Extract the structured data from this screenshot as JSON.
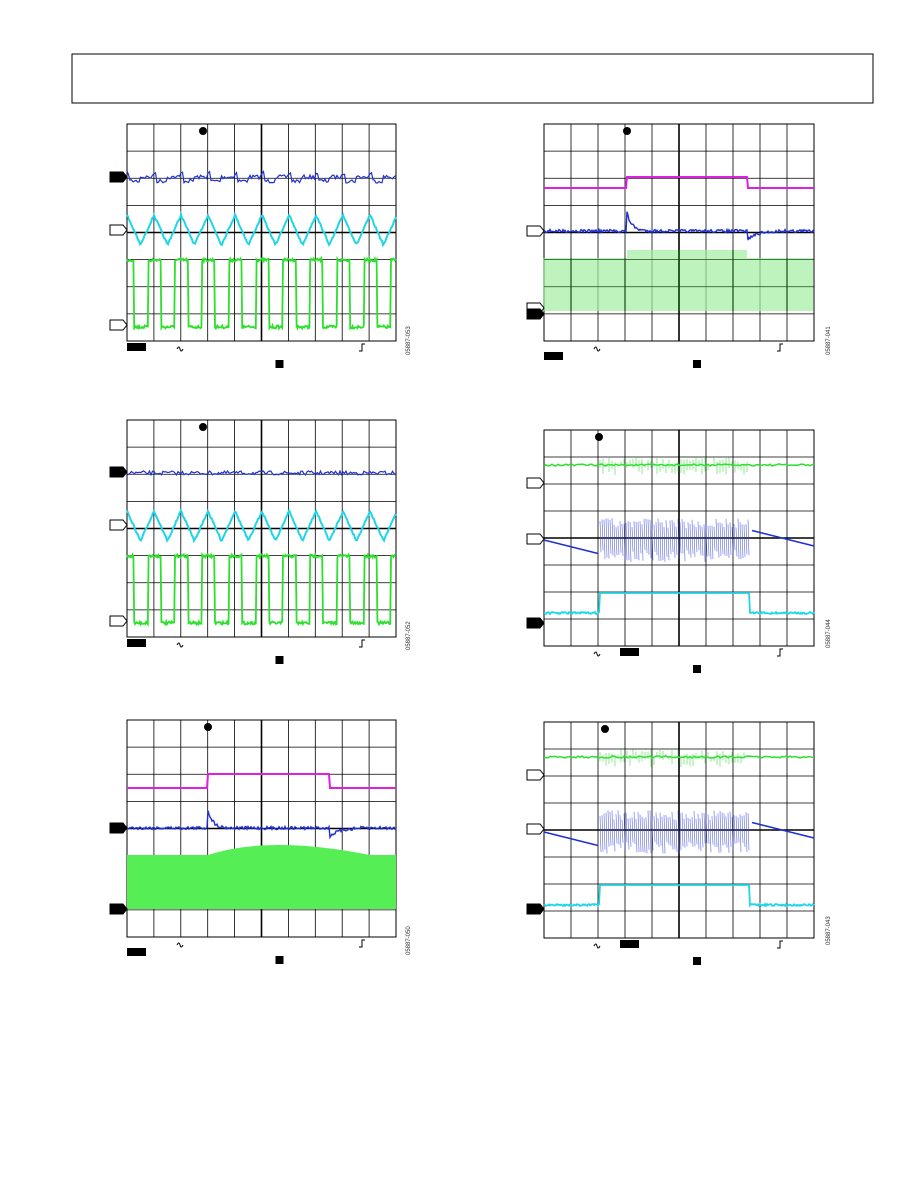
{
  "figures": [
    {
      "id": "05887-053"
    },
    {
      "id": "05887-052"
    },
    {
      "id": "05887-050"
    },
    {
      "id": "05887-041"
    },
    {
      "id": "05887-044"
    },
    {
      "id": "05887-043"
    }
  ]
}
